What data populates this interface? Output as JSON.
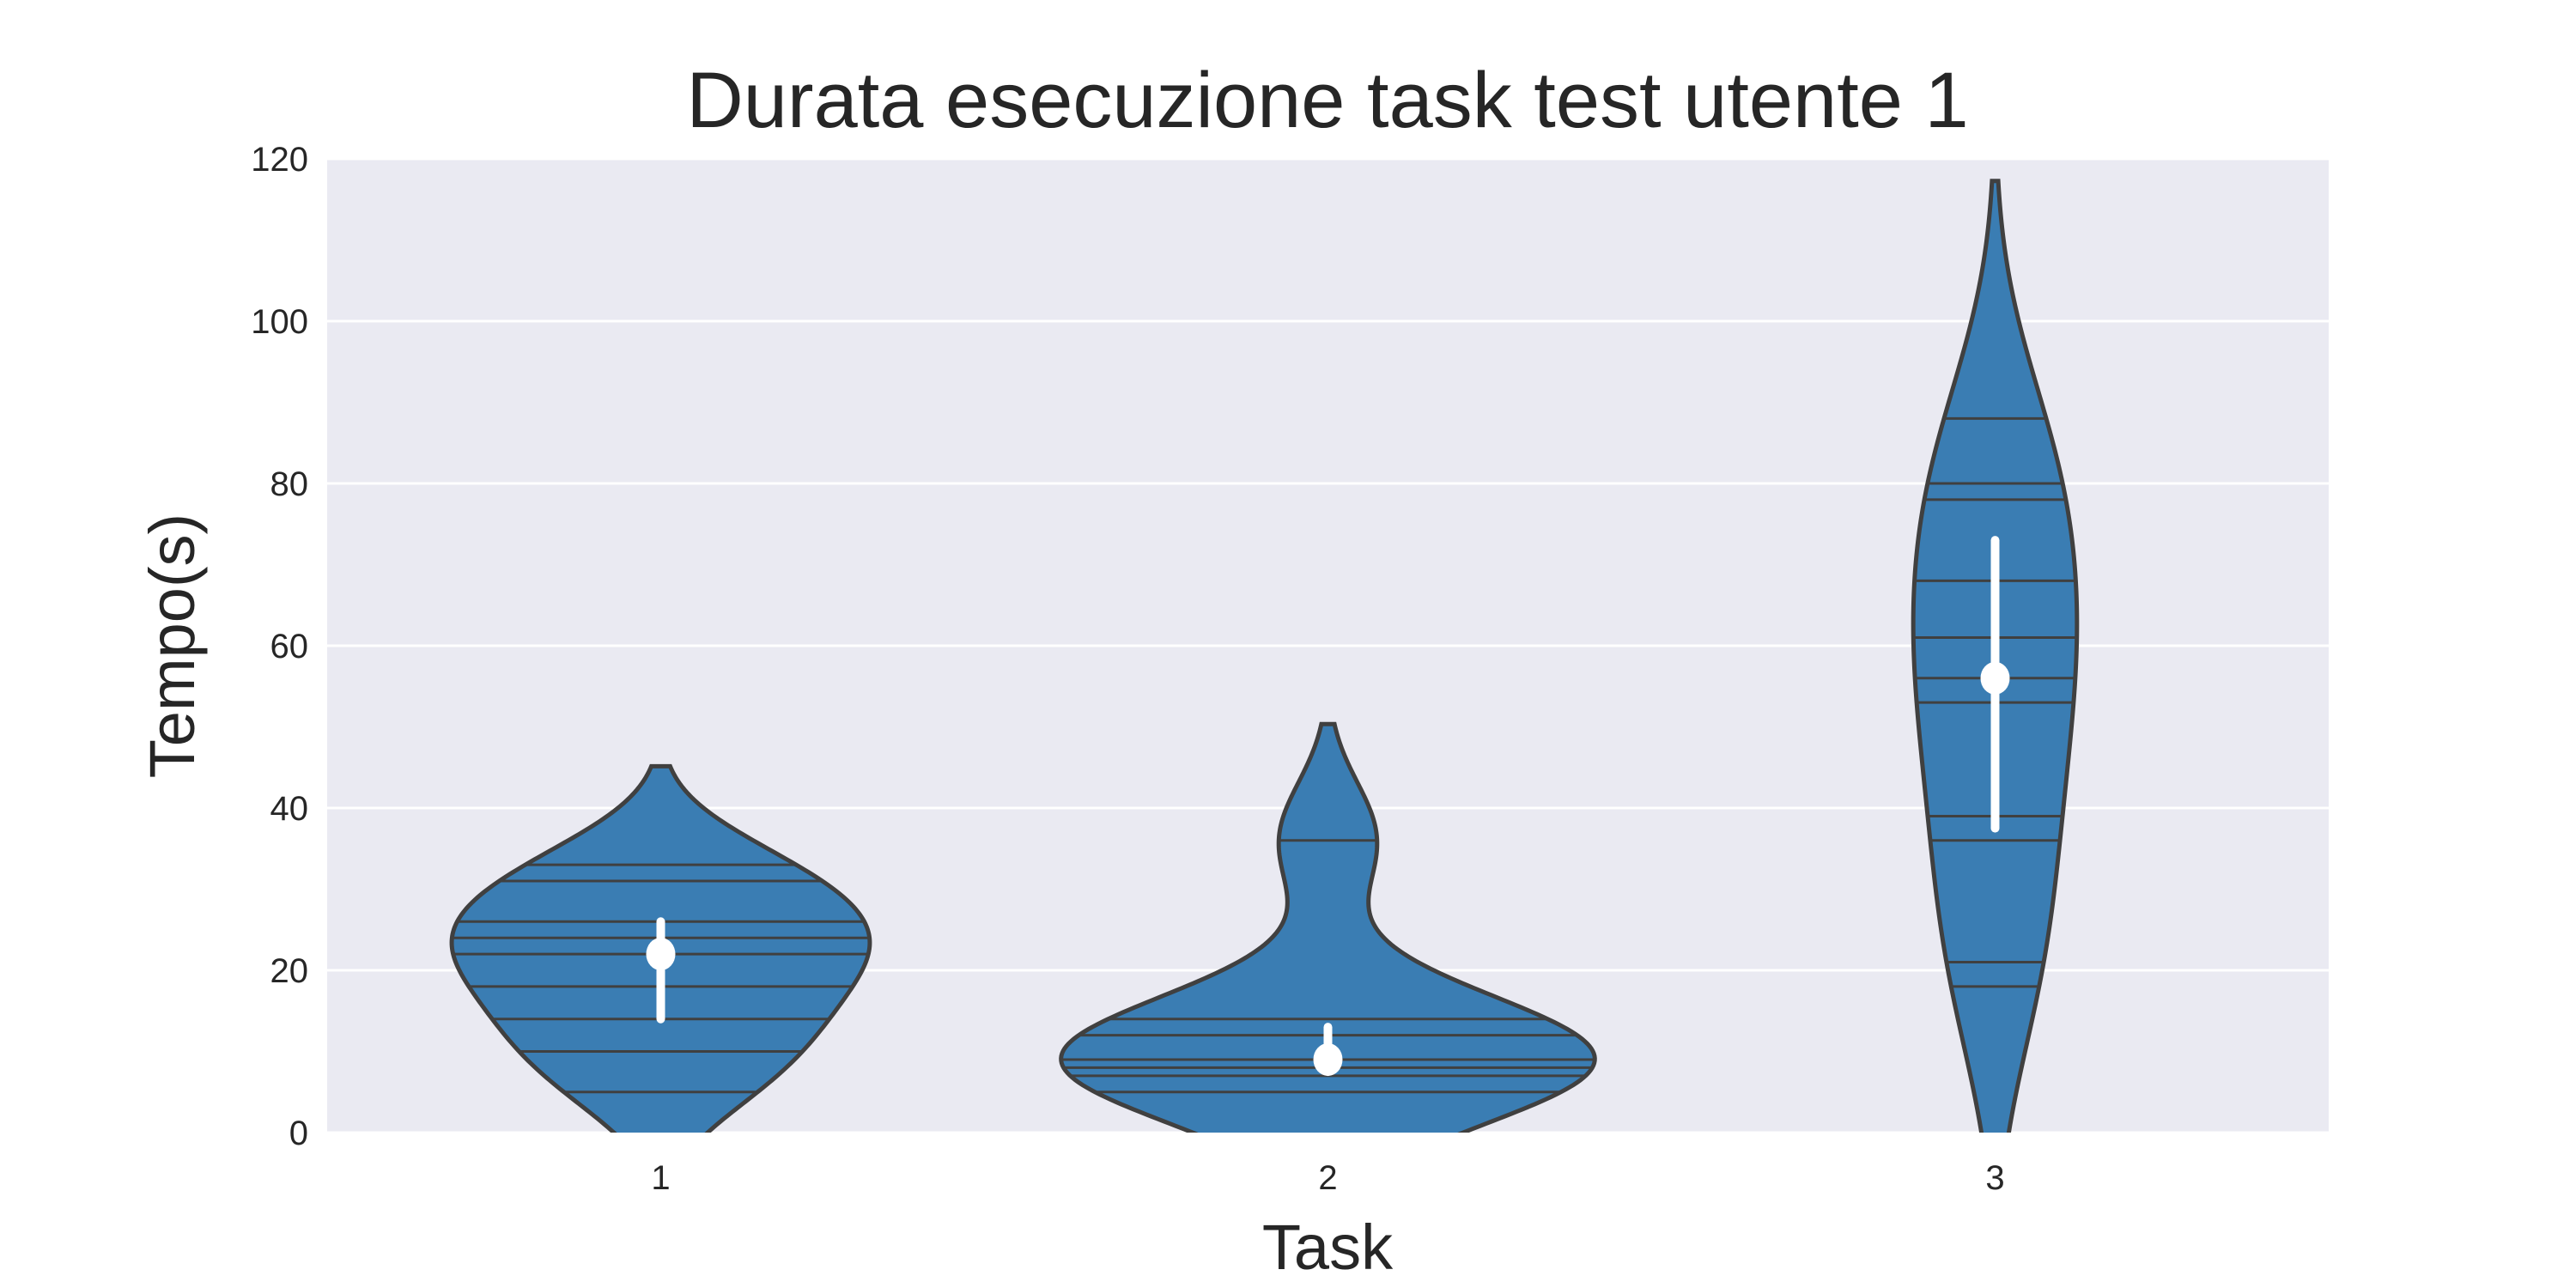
{
  "chart_data": {
    "type": "violin",
    "title": "Durata esecuzione task test utente 1",
    "xlabel": "Task",
    "ylabel": "Tempo(s)",
    "categories": [
      "1",
      "2",
      "3"
    ],
    "ylim": [
      0,
      120
    ],
    "yticks": [
      0,
      20,
      40,
      60,
      80,
      100,
      120
    ],
    "grid": true,
    "series": [
      {
        "category": "1",
        "values": [
          5,
          10,
          14,
          18,
          22,
          24,
          26,
          31,
          33
        ]
      },
      {
        "category": "2",
        "values": [
          5,
          7,
          8,
          9,
          12,
          14,
          36
        ]
      },
      {
        "category": "3",
        "values": [
          18,
          21,
          36,
          39,
          53,
          56,
          61,
          68,
          78,
          80,
          88
        ]
      }
    ],
    "colors": {
      "violin": "#3a7db3",
      "edge": "#404040",
      "background": "#eaeaf2",
      "grid": "#ffffff",
      "box": "#ffffff"
    }
  }
}
